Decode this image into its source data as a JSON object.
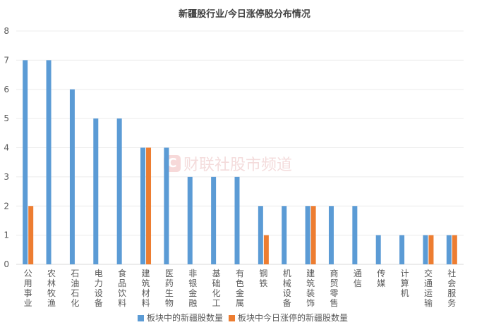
{
  "chart_data": {
    "type": "bar",
    "title": "新疆股行业/今日涨停股分布情况",
    "categories": [
      "公用事业",
      "农林牧渔",
      "石油石化",
      "电力设备",
      "食品饮料",
      "建筑材料",
      "医药生物",
      "非银金融",
      "基础化工",
      "有色金属",
      "钢铁",
      "机械设备",
      "建筑装饰",
      "商贸零售",
      "通信",
      "传媒",
      "计算机",
      "交通运输",
      "社会服务"
    ],
    "series": [
      {
        "name": "板块中的新疆股数量",
        "color": "#5b9bd5",
        "values": [
          7,
          7,
          6,
          5,
          5,
          4,
          4,
          3,
          3,
          3,
          2,
          2,
          2,
          2,
          2,
          1,
          1,
          1,
          1
        ]
      },
      {
        "name": "板块中今日涨停的新疆股数量",
        "color": "#ed7d31",
        "values": [
          2,
          0,
          0,
          0,
          0,
          4,
          0,
          0,
          0,
          0,
          1,
          0,
          2,
          0,
          0,
          0,
          0,
          1,
          1
        ]
      }
    ],
    "ylim": [
      0,
      8
    ],
    "yticks": [
      "0",
      "1",
      "2",
      "3",
      "4",
      "5",
      "6",
      "7",
      "8"
    ],
    "grid": true,
    "legend": "bottom",
    "xlabel": "",
    "ylabel": ""
  },
  "watermark": {
    "text": "财联社股市频道",
    "logo": "C"
  }
}
